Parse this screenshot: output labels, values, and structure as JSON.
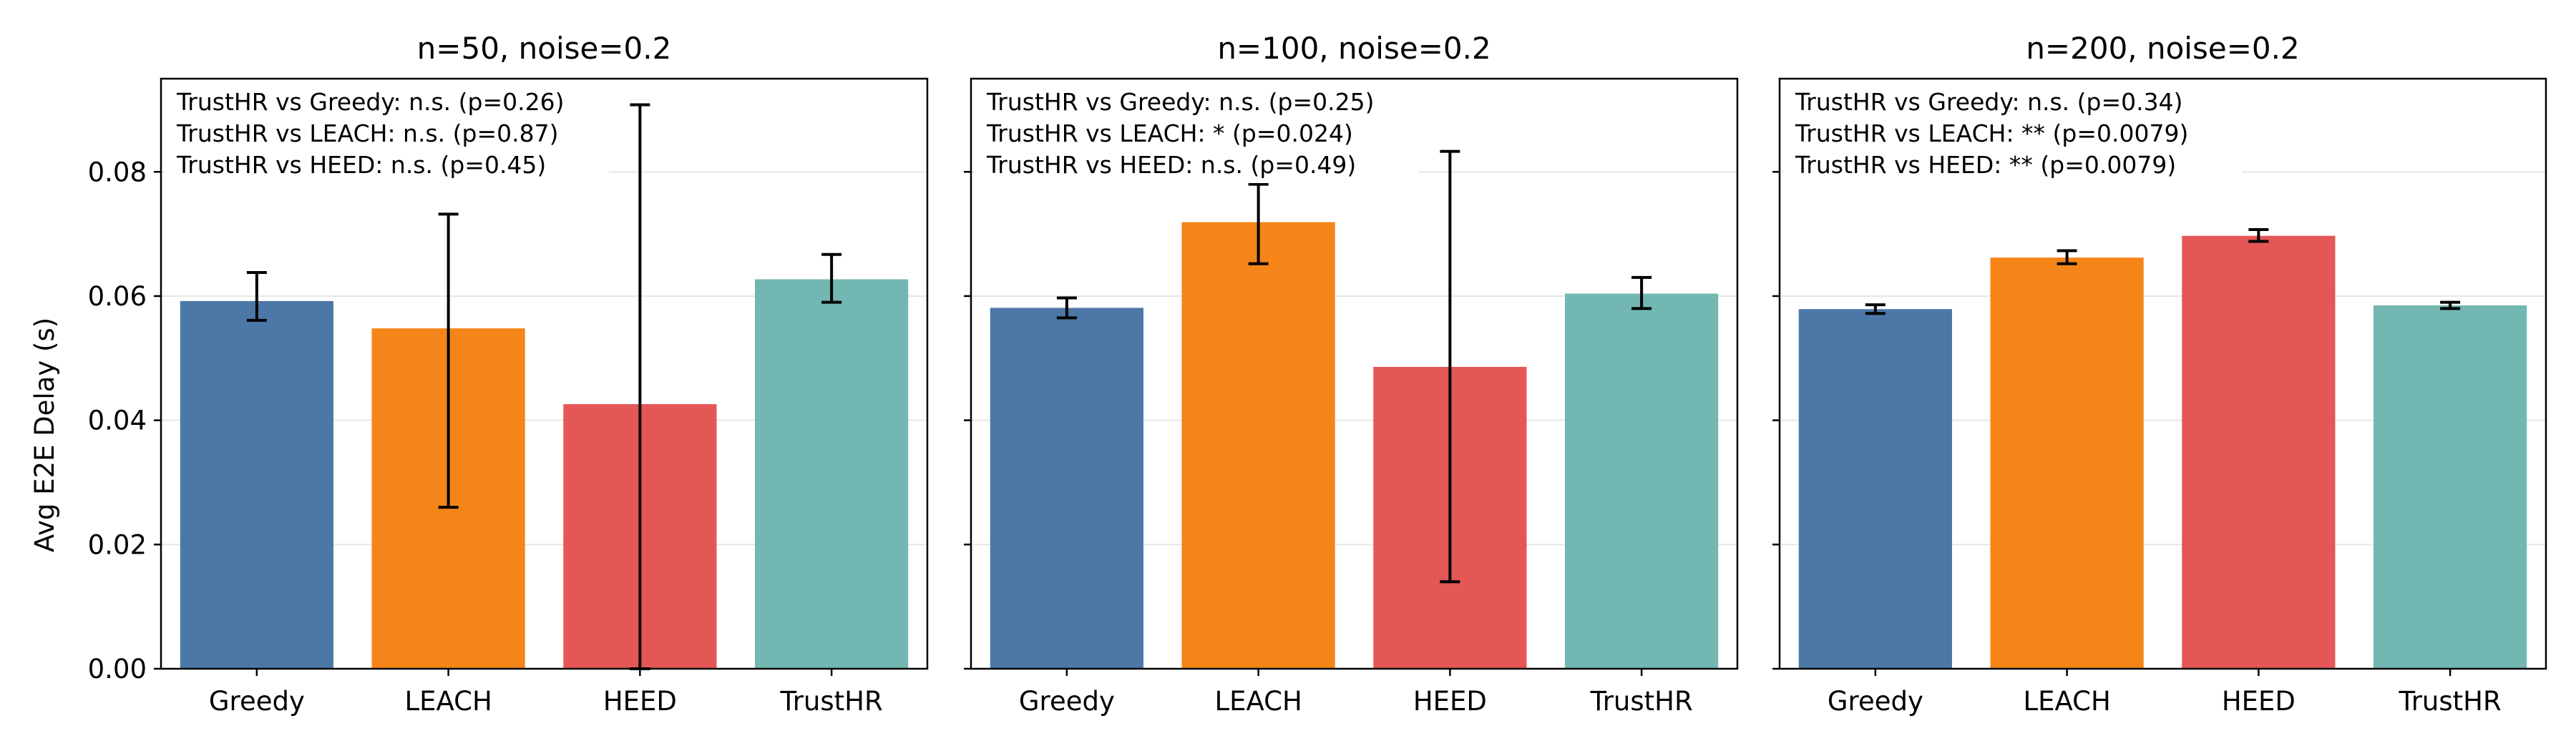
{
  "chart_data": [
    {
      "type": "bar",
      "title": "n=50, noise=0.2",
      "ylabel": "Avg E2E Delay (s)",
      "categories": [
        "Greedy",
        "LEACH",
        "HEED",
        "TrustHR"
      ],
      "values": [
        0.0592,
        0.0548,
        0.0426,
        0.0627
      ],
      "err_low": [
        0.0561,
        0.026,
        0.0,
        0.059
      ],
      "err_high": [
        0.0638,
        0.0732,
        0.0908,
        0.0667
      ],
      "ylim": [
        0,
        0.095
      ],
      "yticks": [
        "0.00",
        "0.02",
        "0.04",
        "0.06",
        "0.08"
      ],
      "grid": true,
      "annotations": [
        "TrustHR vs Greedy: n.s. (p=0.26)",
        "TrustHR vs LEACH: n.s. (p=0.87)",
        "TrustHR vs HEED: n.s. (p=0.45)"
      ]
    },
    {
      "type": "bar",
      "title": "n=100, noise=0.2",
      "ylabel": "",
      "categories": [
        "Greedy",
        "LEACH",
        "HEED",
        "TrustHR"
      ],
      "values": [
        0.0581,
        0.0719,
        0.0486,
        0.0604
      ],
      "err_low": [
        0.0565,
        0.0652,
        0.014,
        0.058
      ],
      "err_high": [
        0.0597,
        0.078,
        0.0833,
        0.063
      ],
      "ylim": [
        0,
        0.095
      ],
      "yticks": [
        "0.00",
        "0.02",
        "0.04",
        "0.06",
        "0.08"
      ],
      "grid": true,
      "annotations": [
        "TrustHR vs Greedy: n.s. (p=0.25)",
        "TrustHR vs LEACH: * (p=0.024)",
        "TrustHR vs HEED: n.s. (p=0.49)"
      ]
    },
    {
      "type": "bar",
      "title": "n=200, noise=0.2",
      "ylabel": "",
      "categories": [
        "Greedy",
        "LEACH",
        "HEED",
        "TrustHR"
      ],
      "values": [
        0.0579,
        0.0662,
        0.0697,
        0.0585
      ],
      "err_low": [
        0.0572,
        0.0652,
        0.0688,
        0.058
      ],
      "err_high": [
        0.0586,
        0.0673,
        0.0707,
        0.059
      ],
      "ylim": [
        0,
        0.095
      ],
      "yticks": [
        "0.00",
        "0.02",
        "0.04",
        "0.06",
        "0.08"
      ],
      "grid": true,
      "annotations": [
        "TrustHR vs Greedy: n.s. (p=0.34)",
        "TrustHR vs LEACH: ** (p=0.0079)",
        "TrustHR vs HEED: ** (p=0.0079)"
      ]
    }
  ],
  "colors": {
    "Greedy": "#4c78a8",
    "LEACH": "#f58518",
    "HEED": "#e45756",
    "TrustHR": "#72b7b2"
  }
}
